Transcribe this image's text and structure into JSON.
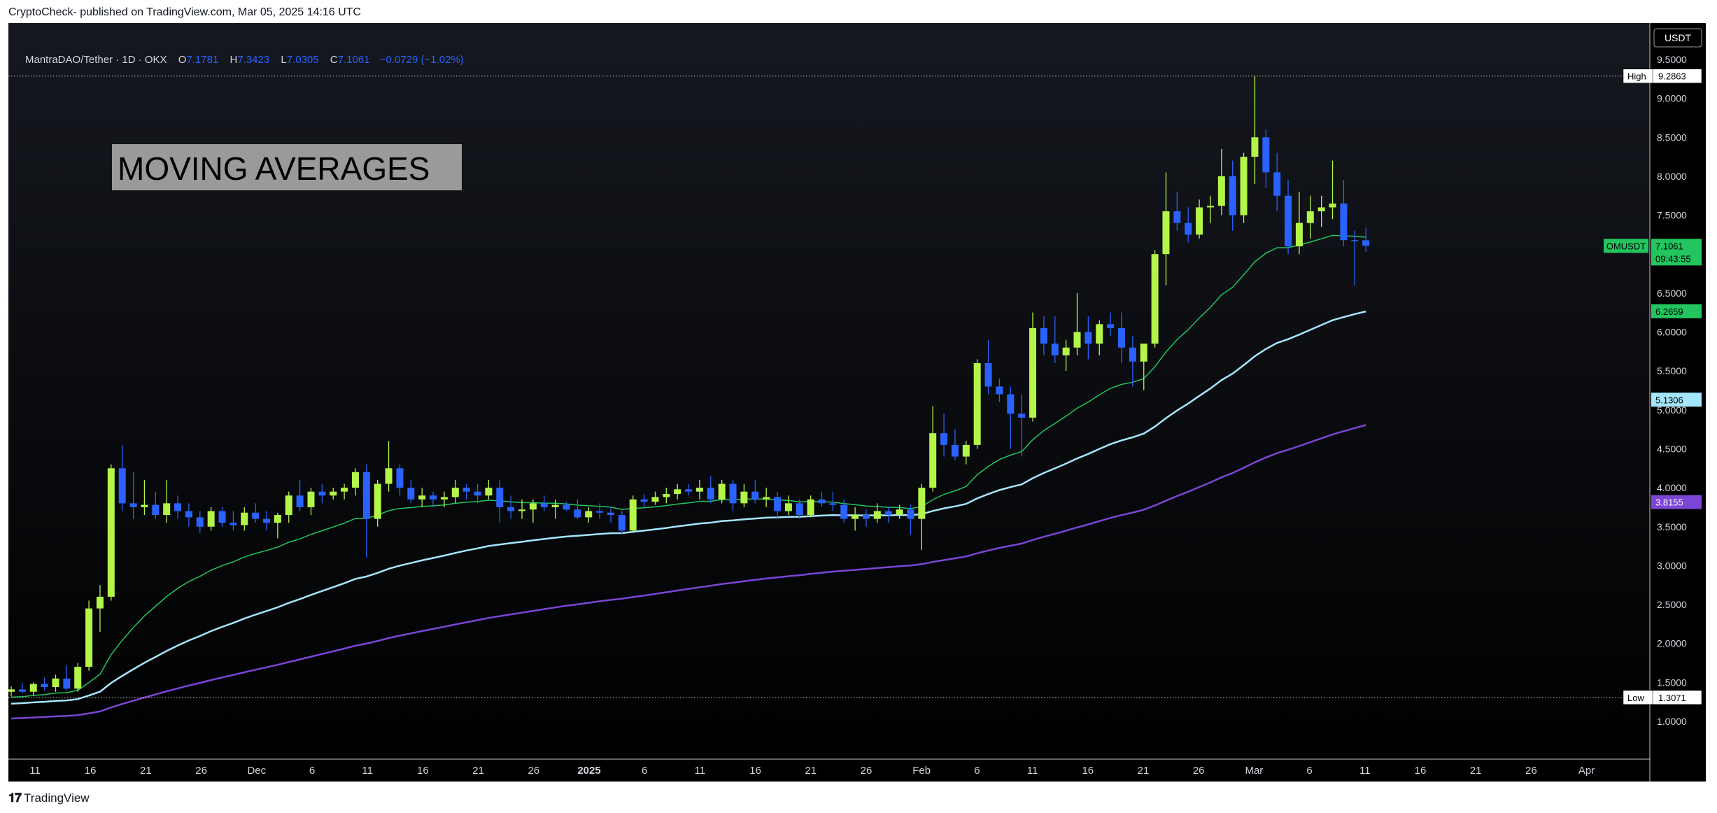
{
  "header": {
    "published": "CryptoCheck- published on TradingView.com, Mar 05, 2025 14:16 UTC"
  },
  "footer": {
    "logo": "TradingView"
  },
  "legend": {
    "symbol": "MantraDAO/Tether · 1D · OKX",
    "o_label": "O",
    "o": "7.1781",
    "h_label": "H",
    "h": "7.3423",
    "l_label": "L",
    "l": "7.0305",
    "c_label": "C",
    "c": "7.1061",
    "change": "−0.0729 (−1.02%)"
  },
  "colors": {
    "background": "#000000",
    "up": "#b4f549",
    "down": "#2962ff",
    "ma_fast": "#22c55e",
    "ma_mid": "#a5e6ff",
    "ma_slow": "#7b45d6"
  },
  "chart_data": {
    "type": "candlestick",
    "title": "MOVING AVERAGES",
    "currency": "USDT",
    "y_axis": {
      "ticks": [
        1.0,
        1.5,
        2.0,
        2.5,
        3.0,
        3.5,
        4.0,
        4.5,
        5.0,
        5.5,
        6.0,
        6.5,
        7.0,
        7.5,
        8.0,
        8.5,
        9.0,
        9.5
      ],
      "tick_labels": [
        "1.0000",
        "1.5000",
        "2.0000",
        "2.5000",
        "3.0000",
        "3.5000",
        "4.0000",
        "4.5000",
        "5.0000",
        "5.5000",
        "6.0000",
        "6.5000",
        "7.0000",
        "7.5000",
        "8.0000",
        "8.5000",
        "9.0000",
        "9.5000"
      ]
    },
    "x_axis": {
      "ticks": [
        "11",
        "16",
        "21",
        "26",
        "Dec",
        "6",
        "11",
        "16",
        "21",
        "26",
        "2025",
        "6",
        "11",
        "16",
        "21",
        "26",
        "Feb",
        "6",
        "11",
        "16",
        "21",
        "26",
        "Mar",
        "6",
        "11",
        "16",
        "21",
        "26",
        "Apr"
      ]
    },
    "high_line": {
      "label": "High",
      "value_label": "9.2863",
      "value": 9.2863
    },
    "low_line": {
      "label": "Low",
      "value_label": "1.3071",
      "value": 1.3071
    },
    "price_badge": {
      "symbol": "OMUSDT",
      "value_label": "7.1061",
      "countdown": "09:43:55",
      "value": 7.1061
    },
    "ma_badges": [
      {
        "label": "6.2659",
        "value": 6.2659
      },
      {
        "label": "5.1306",
        "value": 5.1306
      },
      {
        "label": "3.8155",
        "value": 3.8155
      }
    ],
    "candles": [
      [
        1.38,
        1.45,
        1.32,
        1.41
      ],
      [
        1.41,
        1.5,
        1.36,
        1.38
      ],
      [
        1.38,
        1.5,
        1.33,
        1.48
      ],
      [
        1.48,
        1.56,
        1.4,
        1.44
      ],
      [
        1.44,
        1.6,
        1.38,
        1.55
      ],
      [
        1.55,
        1.72,
        1.4,
        1.42
      ],
      [
        1.42,
        1.75,
        1.38,
        1.7
      ],
      [
        1.7,
        2.55,
        1.65,
        2.45
      ],
      [
        2.45,
        2.75,
        2.15,
        2.6
      ],
      [
        2.6,
        4.3,
        2.55,
        4.25
      ],
      [
        4.25,
        4.55,
        3.7,
        3.8
      ],
      [
        3.8,
        4.2,
        3.6,
        3.75
      ],
      [
        3.75,
        4.1,
        3.65,
        3.78
      ],
      [
        3.78,
        3.95,
        3.6,
        3.65
      ],
      [
        3.65,
        4.1,
        3.55,
        3.8
      ],
      [
        3.8,
        3.9,
        3.6,
        3.7
      ],
      [
        3.7,
        3.8,
        3.5,
        3.62
      ],
      [
        3.62,
        3.7,
        3.42,
        3.5
      ],
      [
        3.5,
        3.75,
        3.45,
        3.7
      ],
      [
        3.7,
        3.75,
        3.5,
        3.55
      ],
      [
        3.55,
        3.7,
        3.45,
        3.52
      ],
      [
        3.52,
        3.75,
        3.45,
        3.68
      ],
      [
        3.68,
        3.8,
        3.55,
        3.6
      ],
      [
        3.6,
        3.7,
        3.45,
        3.55
      ],
      [
        3.55,
        3.68,
        3.35,
        3.65
      ],
      [
        3.65,
        3.95,
        3.55,
        3.9
      ],
      [
        3.9,
        4.1,
        3.7,
        3.75
      ],
      [
        3.75,
        4.0,
        3.65,
        3.95
      ],
      [
        3.95,
        4.05,
        3.8,
        3.9
      ],
      [
        3.9,
        4.0,
        3.85,
        3.95
      ],
      [
        3.95,
        4.05,
        3.85,
        4.0
      ],
      [
        4.0,
        4.25,
        3.9,
        4.2
      ],
      [
        4.2,
        4.3,
        3.1,
        3.6
      ],
      [
        3.6,
        4.1,
        3.5,
        4.05
      ],
      [
        4.05,
        4.6,
        3.95,
        4.25
      ],
      [
        4.25,
        4.3,
        3.9,
        4.0
      ],
      [
        4.0,
        4.1,
        3.8,
        3.85
      ],
      [
        3.85,
        4.0,
        3.75,
        3.9
      ],
      [
        3.9,
        3.95,
        3.75,
        3.85
      ],
      [
        3.85,
        3.95,
        3.75,
        3.88
      ],
      [
        3.88,
        4.1,
        3.8,
        4.0
      ],
      [
        4.0,
        4.05,
        3.85,
        3.95
      ],
      [
        3.95,
        4.05,
        3.8,
        3.9
      ],
      [
        3.9,
        4.1,
        3.85,
        4.0
      ],
      [
        4.0,
        4.1,
        3.55,
        3.75
      ],
      [
        3.75,
        3.9,
        3.6,
        3.7
      ],
      [
        3.7,
        3.85,
        3.6,
        3.72
      ],
      [
        3.72,
        3.85,
        3.55,
        3.8
      ],
      [
        3.8,
        3.9,
        3.7,
        3.75
      ],
      [
        3.75,
        3.85,
        3.6,
        3.78
      ],
      [
        3.78,
        3.82,
        3.7,
        3.72
      ],
      [
        3.72,
        3.85,
        3.6,
        3.62
      ],
      [
        3.62,
        3.75,
        3.55,
        3.7
      ],
      [
        3.7,
        3.8,
        3.6,
        3.68
      ],
      [
        3.68,
        3.75,
        3.55,
        3.65
      ],
      [
        3.65,
        3.7,
        3.4,
        3.45
      ],
      [
        3.45,
        3.9,
        3.42,
        3.85
      ],
      [
        3.85,
        3.92,
        3.75,
        3.82
      ],
      [
        3.82,
        3.95,
        3.78,
        3.88
      ],
      [
        3.88,
        4.0,
        3.8,
        3.92
      ],
      [
        3.92,
        4.05,
        3.85,
        3.98
      ],
      [
        3.98,
        4.05,
        3.9,
        3.95
      ],
      [
        3.95,
        4.1,
        3.85,
        4.0
      ],
      [
        4.0,
        4.15,
        3.8,
        3.85
      ],
      [
        3.85,
        4.1,
        3.8,
        4.05
      ],
      [
        4.05,
        4.1,
        3.7,
        3.8
      ],
      [
        3.8,
        4.05,
        3.75,
        3.95
      ],
      [
        3.95,
        4.1,
        3.8,
        3.85
      ],
      [
        3.85,
        4.0,
        3.75,
        3.88
      ],
      [
        3.88,
        3.95,
        3.6,
        3.7
      ],
      [
        3.7,
        3.9,
        3.65,
        3.8
      ],
      [
        3.8,
        3.85,
        3.6,
        3.65
      ],
      [
        3.65,
        3.9,
        3.62,
        3.85
      ],
      [
        3.85,
        3.95,
        3.75,
        3.8
      ],
      [
        3.8,
        3.95,
        3.7,
        3.78
      ],
      [
        3.78,
        3.85,
        3.55,
        3.6
      ],
      [
        3.6,
        3.75,
        3.45,
        3.65
      ],
      [
        3.65,
        3.72,
        3.5,
        3.6
      ],
      [
        3.6,
        3.8,
        3.55,
        3.7
      ],
      [
        3.7,
        3.75,
        3.55,
        3.65
      ],
      [
        3.65,
        3.78,
        3.6,
        3.72
      ],
      [
        3.72,
        3.78,
        3.4,
        3.6
      ],
      [
        3.6,
        4.05,
        3.2,
        4.0
      ],
      [
        4.0,
        5.05,
        3.95,
        4.7
      ],
      [
        4.7,
        4.95,
        4.4,
        4.55
      ],
      [
        4.55,
        4.75,
        4.35,
        4.4
      ],
      [
        4.4,
        4.6,
        4.3,
        4.55
      ],
      [
        4.55,
        5.65,
        4.5,
        5.6
      ],
      [
        5.6,
        5.9,
        5.2,
        5.3
      ],
      [
        5.3,
        5.4,
        5.1,
        5.2
      ],
      [
        5.2,
        5.3,
        4.5,
        4.95
      ],
      [
        4.95,
        5.2,
        4.4,
        4.9
      ],
      [
        4.9,
        6.25,
        4.85,
        6.05
      ],
      [
        6.05,
        6.2,
        5.7,
        5.85
      ],
      [
        5.85,
        6.2,
        5.6,
        5.7
      ],
      [
        5.7,
        5.9,
        5.5,
        5.8
      ],
      [
        5.8,
        6.5,
        5.7,
        6.0
      ],
      [
        6.0,
        6.2,
        5.65,
        5.85
      ],
      [
        5.85,
        6.15,
        5.7,
        6.1
      ],
      [
        6.1,
        6.25,
        5.95,
        6.05
      ],
      [
        6.05,
        6.25,
        5.6,
        5.8
      ],
      [
        5.8,
        5.95,
        5.3,
        5.62
      ],
      [
        5.62,
        5.8,
        5.25,
        5.85
      ],
      [
        5.85,
        7.05,
        5.8,
        7.0
      ],
      [
        7.0,
        8.05,
        6.6,
        7.55
      ],
      [
        7.55,
        7.8,
        7.3,
        7.4
      ],
      [
        7.4,
        7.6,
        7.15,
        7.25
      ],
      [
        7.25,
        7.7,
        7.2,
        7.6
      ],
      [
        7.6,
        7.75,
        7.4,
        7.62
      ],
      [
        7.62,
        8.35,
        7.5,
        8.0
      ],
      [
        8.0,
        8.2,
        7.3,
        7.5
      ],
      [
        7.5,
        8.3,
        7.4,
        8.25
      ],
      [
        8.25,
        9.2863,
        7.9,
        8.5
      ],
      [
        8.5,
        8.6,
        7.85,
        8.05
      ],
      [
        8.05,
        8.3,
        7.55,
        7.75
      ],
      [
        7.75,
        7.95,
        7.0,
        7.1
      ],
      [
        7.1,
        7.8,
        7.0,
        7.4
      ],
      [
        7.4,
        7.75,
        7.2,
        7.55
      ],
      [
        7.55,
        7.75,
        7.35,
        7.6
      ],
      [
        7.6,
        8.2,
        7.45,
        7.65
      ],
      [
        7.65,
        7.95,
        7.1,
        7.18
      ],
      [
        7.18,
        7.3,
        6.6,
        7.17
      ],
      [
        7.1781,
        7.3423,
        7.0305,
        7.1061
      ]
    ]
  }
}
